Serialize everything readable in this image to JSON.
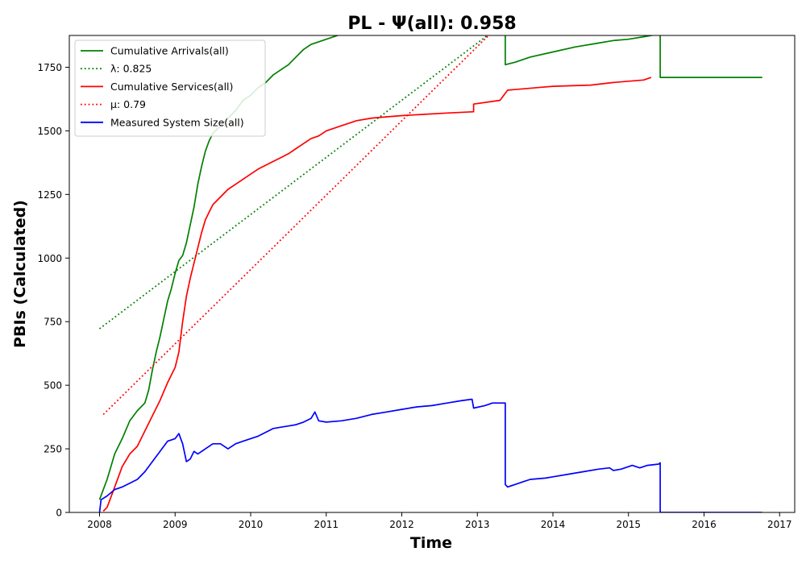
{
  "chart_data": {
    "type": "line",
    "title": "PL -  Ψ(all): 0.958",
    "xlabel": "Time",
    "ylabel": "PBIs (Calculated)",
    "xlim": [
      2007.6,
      2017.2
    ],
    "ylim": [
      0,
      1875
    ],
    "x_ticks": [
      2008,
      2009,
      2010,
      2011,
      2012,
      2013,
      2014,
      2015,
      2016,
      2017
    ],
    "y_ticks": [
      0,
      250,
      500,
      750,
      1000,
      1250,
      1500,
      1750
    ],
    "grid": false,
    "legend_position": "upper-left",
    "series": [
      {
        "name": "Cumulative Arrivals(all)",
        "color": "#008000",
        "style": "solid",
        "x": [
          2008.0,
          2008.05,
          2008.1,
          2008.2,
          2008.3,
          2008.4,
          2008.5,
          2008.6,
          2008.65,
          2008.7,
          2008.75,
          2008.8,
          2008.85,
          2008.9,
          2008.95,
          2009.0,
          2009.05,
          2009.1,
          2009.15,
          2009.2,
          2009.25,
          2009.3,
          2009.35,
          2009.4,
          2009.45,
          2009.5,
          2009.6,
          2009.7,
          2009.8,
          2009.9,
          2010.0,
          2010.1,
          2010.2,
          2010.3,
          2010.4,
          2010.5,
          2010.6,
          2010.7,
          2010.8,
          2010.9,
          2011.0,
          2011.1,
          2011.2,
          2011.3,
          2012.0,
          2012.5,
          2013.0,
          2013.37,
          2013.37,
          2013.5,
          2013.7,
          2014.0,
          2014.3,
          2014.6,
          2014.8,
          2015.0,
          2015.2,
          2015.4,
          2015.42,
          2015.42,
          2016.0,
          2016.5,
          2016.77
        ],
        "y": [
          50,
          90,
          130,
          230,
          290,
          360,
          400,
          430,
          480,
          560,
          630,
          690,
          760,
          830,
          880,
          940,
          990,
          1010,
          1060,
          1130,
          1200,
          1290,
          1360,
          1420,
          1460,
          1490,
          1520,
          1550,
          1580,
          1620,
          1640,
          1670,
          1690,
          1720,
          1740,
          1760,
          1790,
          1820,
          1840,
          1850,
          1860,
          1870,
          1880,
          1890,
          1890,
          1890,
          1890,
          1890,
          1760,
          1770,
          1790,
          1810,
          1830,
          1845,
          1855,
          1860,
          1870,
          1880,
          1880,
          1710,
          1710,
          1710,
          1710
        ]
      },
      {
        "name": "λ: 0.825",
        "color": "#008000",
        "style": "dotted",
        "x": [
          2008.0,
          2013.2
        ],
        "y": [
          722,
          1890
        ]
      },
      {
        "name": "Cumulative Services(all)",
        "color": "#ff0000",
        "style": "solid",
        "x": [
          2008.05,
          2008.1,
          2008.2,
          2008.3,
          2008.4,
          2008.5,
          2008.6,
          2008.7,
          2008.8,
          2008.9,
          2009.0,
          2009.05,
          2009.1,
          2009.15,
          2009.2,
          2009.25,
          2009.3,
          2009.35,
          2009.4,
          2009.45,
          2009.5,
          2009.6,
          2009.7,
          2009.8,
          2009.9,
          2010.0,
          2010.1,
          2010.2,
          2010.3,
          2010.4,
          2010.5,
          2010.6,
          2010.7,
          2010.8,
          2010.9,
          2011.0,
          2011.2,
          2011.4,
          2011.6,
          2011.8,
          2012.0,
          2012.3,
          2012.6,
          2012.95,
          2012.95,
          2013.3,
          2013.4,
          2013.6,
          2013.8,
          2014.0,
          2014.5,
          2014.8,
          2015.0,
          2015.2,
          2015.3
        ],
        "y": [
          5,
          20,
          100,
          180,
          230,
          260,
          320,
          380,
          440,
          510,
          570,
          630,
          750,
          850,
          920,
          980,
          1040,
          1100,
          1150,
          1180,
          1210,
          1240,
          1270,
          1290,
          1310,
          1330,
          1350,
          1365,
          1380,
          1395,
          1410,
          1430,
          1450,
          1470,
          1480,
          1500,
          1520,
          1540,
          1550,
          1555,
          1560,
          1565,
          1570,
          1575,
          1605,
          1620,
          1660,
          1665,
          1670,
          1675,
          1680,
          1690,
          1695,
          1700,
          1710
        ]
      },
      {
        "name": "μ: 0.79",
        "color": "#ff0000",
        "style": "dotted",
        "x": [
          2008.05,
          2013.2
        ],
        "y": [
          385,
          1890
        ]
      },
      {
        "name": "Measured System Size(all)",
        "color": "#0000ff",
        "style": "solid",
        "x": [
          2008.0,
          2008.02,
          2008.1,
          2008.2,
          2008.3,
          2008.4,
          2008.5,
          2008.6,
          2008.7,
          2008.8,
          2008.9,
          2009.0,
          2009.05,
          2009.1,
          2009.15,
          2009.2,
          2009.25,
          2009.3,
          2009.4,
          2009.5,
          2009.6,
          2009.7,
          2009.8,
          2009.9,
          2010.0,
          2010.1,
          2010.2,
          2010.3,
          2010.4,
          2010.5,
          2010.6,
          2010.7,
          2010.8,
          2010.85,
          2010.9,
          2011.0,
          2011.2,
          2011.4,
          2011.6,
          2011.8,
          2012.0,
          2012.2,
          2012.4,
          2012.6,
          2012.8,
          2012.93,
          2012.95,
          2013.1,
          2013.2,
          2013.37,
          2013.37,
          2013.4,
          2013.5,
          2013.6,
          2013.7,
          2013.9,
          2014.0,
          2014.2,
          2014.4,
          2014.6,
          2014.75,
          2014.8,
          2014.9,
          2015.0,
          2015.05,
          2015.15,
          2015.25,
          2015.4,
          2015.42,
          2015.42,
          2016.0,
          2016.5,
          2016.77
        ],
        "y": [
          0,
          50,
          65,
          90,
          100,
          115,
          130,
          160,
          200,
          240,
          280,
          290,
          310,
          270,
          200,
          210,
          240,
          230,
          250,
          270,
          270,
          250,
          270,
          280,
          290,
          300,
          315,
          330,
          335,
          340,
          345,
          355,
          370,
          395,
          360,
          355,
          360,
          370,
          385,
          395,
          405,
          415,
          420,
          430,
          440,
          445,
          410,
          420,
          430,
          430,
          110,
          100,
          110,
          120,
          130,
          135,
          140,
          150,
          160,
          170,
          175,
          165,
          170,
          180,
          185,
          175,
          185,
          190,
          195,
          0,
          0,
          0,
          0
        ]
      }
    ]
  }
}
